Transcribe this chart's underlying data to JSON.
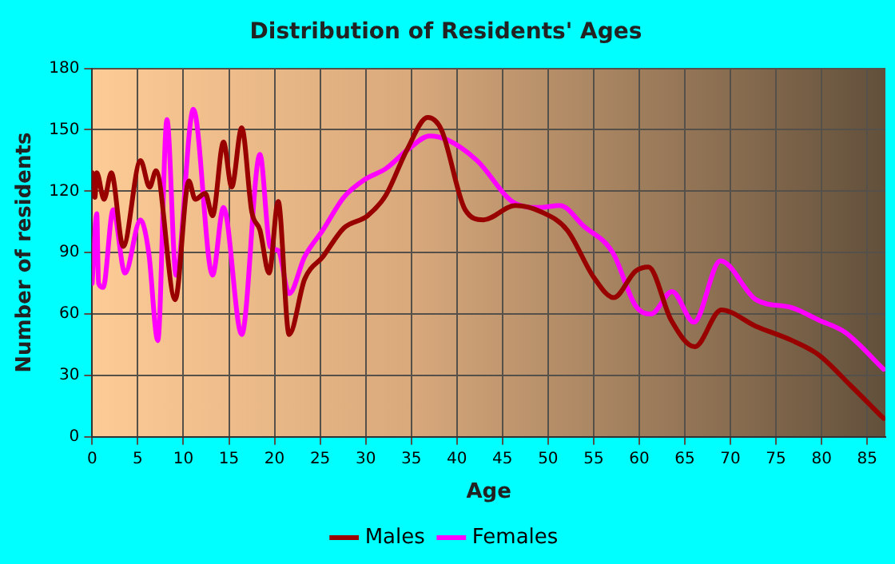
{
  "chart_data": {
    "type": "line",
    "title": "Distribution of Residents' Ages",
    "xlabel": "Age",
    "ylabel": "Number of residents",
    "xlim": [
      0,
      87
    ],
    "xticks": [
      0,
      5,
      10,
      15,
      20,
      25,
      30,
      35,
      40,
      45,
      50,
      55,
      60,
      65,
      70,
      75,
      80,
      85
    ],
    "ylim": [
      0,
      180
    ],
    "yticks": [
      0,
      30,
      60,
      90,
      120,
      150,
      180
    ],
    "grid": true,
    "legend": "bottom",
    "marker": "none",
    "series": [
      {
        "name": "Males",
        "color": "#990000",
        "x": [
          0,
          0.3,
          0.5,
          1.3,
          2.1,
          3.4,
          5.3,
          6.3,
          7,
          9.1,
          10.6,
          11.3,
          12.4,
          13.2,
          14.4,
          15.3,
          16.4,
          17.5,
          18.4,
          19.4,
          20.4,
          21.6,
          23.3,
          25.3,
          27.6,
          30.2,
          32.2,
          34.5,
          36.8,
          38.3,
          40.9,
          42.9,
          46.4,
          49.2,
          52.1,
          55,
          57.2,
          59.6,
          61,
          63.5,
          66.1,
          69,
          72.8,
          76.8,
          79.7,
          83.2,
          86.8
        ],
        "values": [
          129,
          117,
          129,
          116,
          129,
          93,
          135,
          122,
          130,
          67,
          125,
          116,
          119,
          108,
          144,
          122,
          151,
          110,
          101,
          80,
          115,
          50,
          77,
          88,
          102,
          108,
          118,
          140,
          156,
          150,
          111,
          106,
          113,
          110,
          101,
          78,
          68,
          81,
          83,
          57,
          44,
          62,
          54,
          47,
          40,
          25,
          9
        ]
      },
      {
        "name": "Females",
        "color": "#ff00ff",
        "x": [
          0,
          0.5,
          0.7,
          1.2,
          2.3,
          3.6,
          5.3,
          6.2,
          7.2,
          8.2,
          9.2,
          11.1,
          13.2,
          14.4,
          16.4,
          18.4,
          19.5,
          20.4,
          21.6,
          23.3,
          25.3,
          27.6,
          30,
          32.2,
          34.8,
          37,
          39,
          42.2,
          46.4,
          49,
          51.3,
          53.9,
          57.1,
          59.6,
          61.3,
          63.6,
          66,
          68.9,
          72.8,
          76.8,
          79.7,
          82.6,
          86.8
        ],
        "values": [
          75,
          109,
          75,
          73,
          111,
          80,
          106,
          90,
          47,
          155,
          79,
          160,
          79,
          112,
          50,
          138,
          93,
          91,
          70,
          88,
          101,
          117,
          126,
          131,
          141,
          147,
          145,
          135,
          114,
          112,
          113,
          103,
          90,
          64,
          60,
          71,
          56,
          86,
          67,
          63,
          57,
          51,
          33
        ]
      }
    ]
  }
}
